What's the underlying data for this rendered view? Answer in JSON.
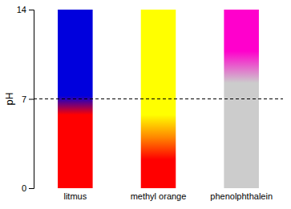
{
  "chart_data": {
    "type": "bar",
    "categories": [
      "litmus",
      "methyl orange",
      "phenolphthalein"
    ],
    "ylabel": "pH",
    "ylim": [
      0,
      14
    ],
    "yticks": [
      0,
      7,
      14
    ],
    "low": [
      0,
      0,
      0
    ],
    "high": [
      14,
      14,
      14
    ],
    "color_acid": [
      "#ff0000",
      "#ff0000",
      "#cccccc"
    ],
    "color_transition": [
      null,
      "#ff8800",
      null
    ],
    "color_base": [
      "#0000dd",
      "#ffff00",
      "#ff00cc"
    ],
    "transition_start": [
      5.75,
      2.25,
      8.25
    ],
    "transition_mid": [
      null,
      4,
      null
    ],
    "transition_end": [
      7.25,
      5.75,
      10.75
    ],
    "reference_line": 7,
    "grid": false
  }
}
